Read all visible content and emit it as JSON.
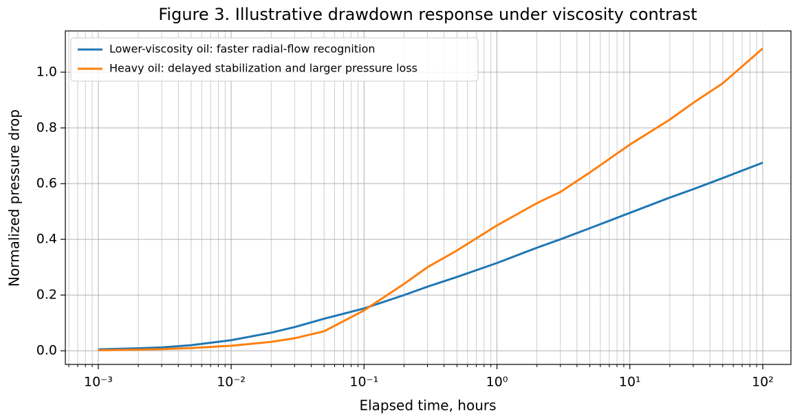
{
  "chart_data": {
    "type": "line",
    "title": "Figure 3. Illustrative drawdown response under viscosity contrast",
    "xlabel": "Elapsed time, hours",
    "ylabel": "Normalized pressure drop",
    "xscale": "log",
    "grid": true,
    "legend": "upper left",
    "x": [
      0.001,
      0.002,
      0.003,
      0.005,
      0.01,
      0.02,
      0.03,
      0.05,
      0.1,
      0.2,
      0.3,
      0.5,
      1,
      2,
      3,
      5,
      10,
      20,
      30,
      50,
      100
    ],
    "series": [
      {
        "name": "Lower-viscosity oil: faster radial-flow recognition",
        "color": "#1f77b4",
        "values": [
          0.005,
          0.009,
          0.012,
          0.02,
          0.038,
          0.065,
          0.085,
          0.115,
          0.152,
          0.2,
          0.23,
          0.265,
          0.315,
          0.37,
          0.4,
          0.44,
          0.495,
          0.55,
          0.58,
          0.62,
          0.675
        ]
      },
      {
        "name": "Heavy oil: delayed stabilization and larger pressure loss",
        "color": "#ff7f0e",
        "values": [
          0.002,
          0.004,
          0.006,
          0.01,
          0.018,
          0.032,
          0.045,
          0.07,
          0.145,
          0.24,
          0.3,
          0.36,
          0.45,
          0.53,
          0.57,
          0.64,
          0.74,
          0.83,
          0.89,
          0.96,
          1.085
        ]
      }
    ],
    "xlim": [
      0.000565,
      163
    ],
    "ylim": [
      -0.049,
      1.148
    ],
    "xticks": [
      {
        "value": 0.001,
        "label": "10⁻³"
      },
      {
        "value": 0.01,
        "label": "10⁻²"
      },
      {
        "value": 0.1,
        "label": "10⁻¹"
      },
      {
        "value": 1,
        "label": "10⁰"
      },
      {
        "value": 10,
        "label": "10¹"
      },
      {
        "value": 100,
        "label": "10²"
      }
    ],
    "xminorticks": [
      0.0006,
      0.0007,
      0.0008,
      0.0009,
      0.002,
      0.003,
      0.004,
      0.005,
      0.006,
      0.007,
      0.008,
      0.009,
      0.02,
      0.03,
      0.04,
      0.05,
      0.06,
      0.07,
      0.08,
      0.09,
      0.2,
      0.3,
      0.4,
      0.5,
      0.6,
      0.7,
      0.8,
      0.9,
      2,
      3,
      4,
      5,
      6,
      7,
      8,
      9,
      20,
      30,
      40,
      50,
      60,
      70,
      80,
      90
    ],
    "yticks": [
      {
        "value": 0,
        "label": "0.0"
      },
      0.2,
      0.4,
      0.6,
      0.8,
      {
        "value": 1,
        "label": "1.0"
      }
    ]
  }
}
